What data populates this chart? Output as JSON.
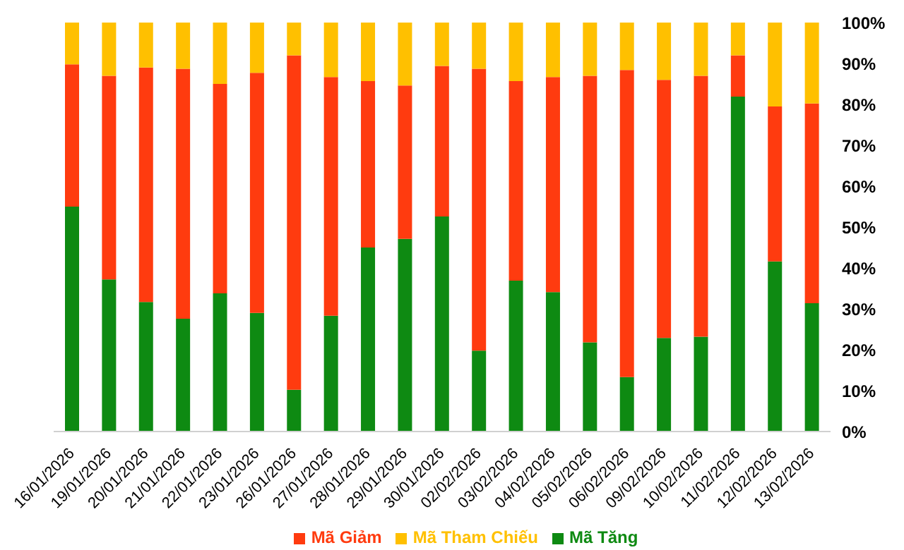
{
  "chart_data": {
    "type": "bar",
    "stacked": true,
    "categories": [
      "16/01/2026",
      "19/01/2026",
      "20/01/2026",
      "21/01/2026",
      "22/01/2026",
      "23/01/2026",
      "26/01/2026",
      "27/01/2026",
      "28/01/2026",
      "29/01/2026",
      "30/01/2026",
      "02/02/2026",
      "03/02/2026",
      "04/02/2026",
      "05/02/2026",
      "06/02/2026",
      "09/02/2026",
      "10/02/2026",
      "11/02/2026",
      "12/02/2026",
      "13/02/2026"
    ],
    "series": [
      {
        "name": "Mã Tăng",
        "color": "#0e8a12",
        "values": [
          55,
          37.2,
          31.7,
          27.6,
          33.8,
          29,
          10.2,
          28.3,
          45,
          47.1,
          52.6,
          19.8,
          36.9,
          34.1,
          21.8,
          13.3,
          22.9,
          23.2,
          81.9,
          41.6,
          31.4
        ]
      },
      {
        "name": "Mã Giảm",
        "color": "#ff3b0f",
        "values": [
          34.8,
          49.8,
          57.3,
          61.1,
          51.2,
          58.7,
          81.8,
          58.4,
          40.7,
          37.5,
          36.8,
          68.9,
          48.8,
          52.6,
          65.2,
          75.1,
          63.1,
          63.8,
          10.1,
          37.9,
          48.8
        ]
      },
      {
        "name": "Mã Tham Chiếu",
        "color": "#ffc000",
        "values": [
          10.2,
          13,
          11,
          11.3,
          15,
          12.3,
          8,
          13.3,
          14.3,
          15.4,
          10.6,
          11.3,
          14.3,
          13.3,
          13,
          11.6,
          14,
          13,
          8,
          20.5,
          19.8
        ]
      }
    ],
    "ylim": [
      0,
      100
    ],
    "yticks": [
      {
        "value": 0,
        "label": "0%"
      },
      {
        "value": 10,
        "label": "10%"
      },
      {
        "value": 20,
        "label": "20%"
      },
      {
        "value": 30,
        "label": "30%"
      },
      {
        "value": 40,
        "label": "40%"
      },
      {
        "value": 50,
        "label": "50%"
      },
      {
        "value": 60,
        "label": "60%"
      },
      {
        "value": 70,
        "label": "70%"
      },
      {
        "value": 80,
        "label": "80%"
      },
      {
        "value": 90,
        "label": "90%"
      },
      {
        "value": 100,
        "label": "100%"
      }
    ],
    "grid": false,
    "legend": "bottom"
  }
}
